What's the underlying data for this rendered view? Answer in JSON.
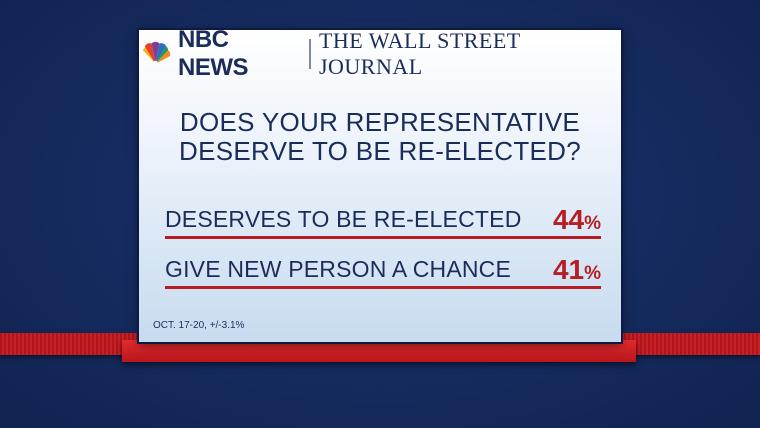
{
  "header": {
    "network": "NBC NEWS",
    "partner": "THE WALL STREET JOURNAL"
  },
  "question": {
    "line1": "DOES YOUR REPRESENTATIVE",
    "line2": "DESERVE TO BE RE-ELECTED?"
  },
  "results": [
    {
      "label": "DESERVES TO BE RE-ELECTED",
      "value": "44",
      "unit": "%"
    },
    {
      "label": "GIVE NEW PERSON A CHANCE",
      "value": "41",
      "unit": "%"
    }
  ],
  "footnote": "OCT. 17-20, +/-3.1%",
  "colors": {
    "background": "#152a5e",
    "text": "#1c2c5a",
    "accent_red": "#b41e24"
  },
  "icons": {
    "logo": "nbc-peacock-icon"
  }
}
